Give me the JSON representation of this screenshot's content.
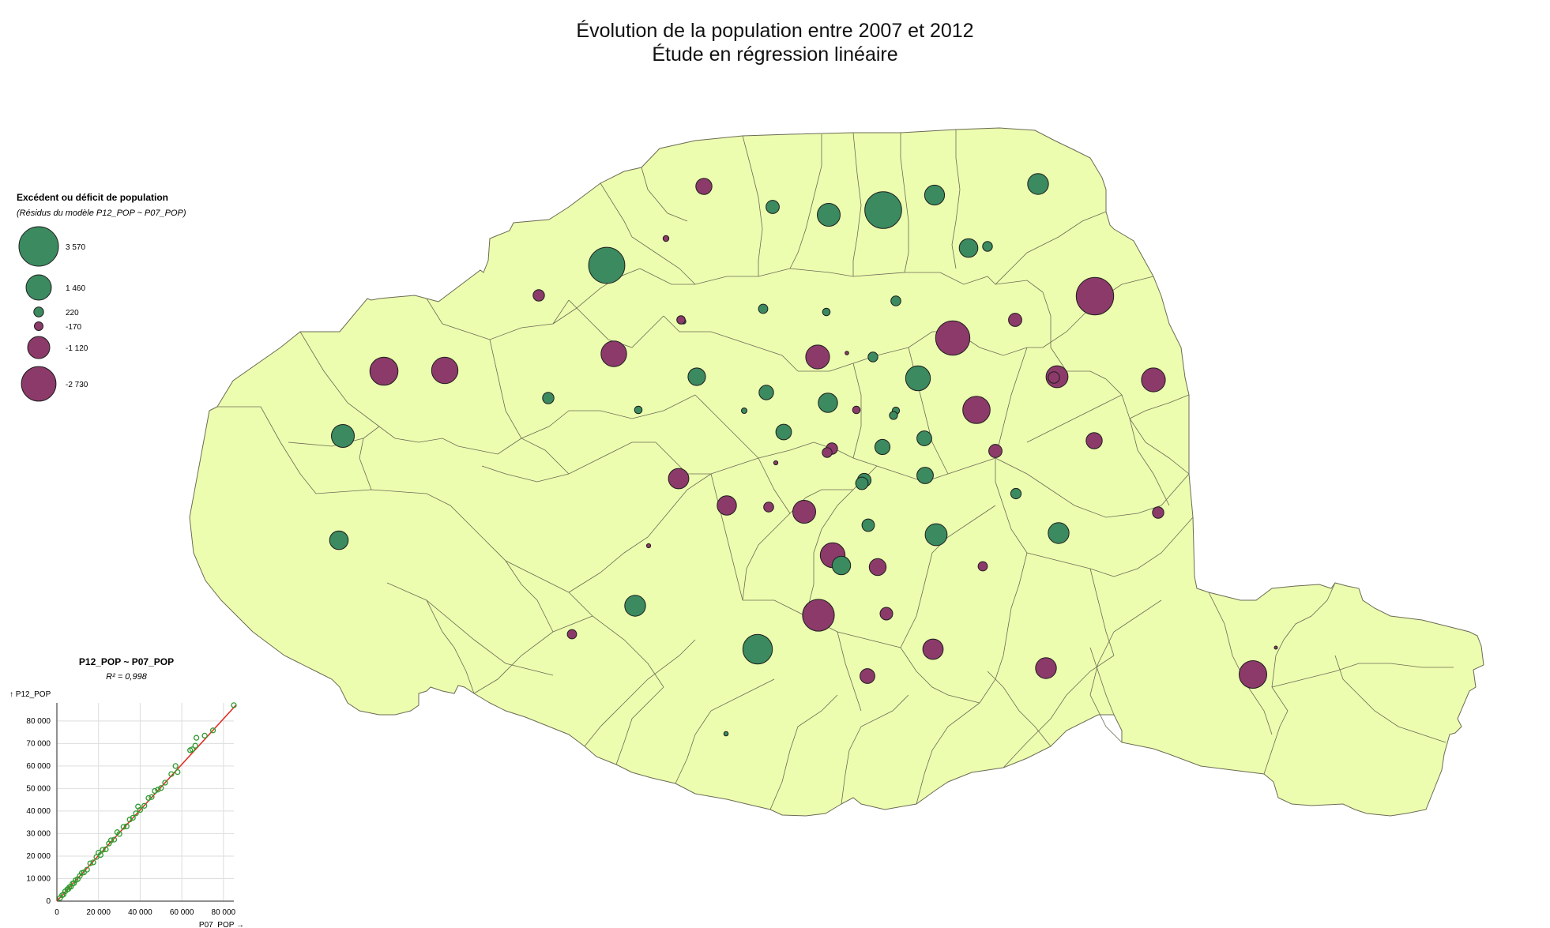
{
  "title": {
    "line1": "Évolution de la population entre 2007 et 2012",
    "line2": "Étude en régression linéaire"
  },
  "colors": {
    "land_fill": "#ecfdaf",
    "border": "#6b6b55",
    "surplus": "#3b8a60",
    "deficit": "#8c3a6a",
    "regression_line": "#e0281e",
    "scatter_point": "#2f9a2f"
  },
  "legend": {
    "title": "Excédent ou déficit de population",
    "subtitle": "(Résidus du modèle P12_POP ~ P07_POP)",
    "items": [
      {
        "value": 3570,
        "label": "3 570",
        "kind": "surplus"
      },
      {
        "value": 1460,
        "label": "1 460",
        "kind": "surplus"
      },
      {
        "value": 220,
        "label": "220",
        "kind": "surplus"
      },
      {
        "value": -170,
        "label": "-170",
        "kind": "deficit"
      },
      {
        "value": -1120,
        "label": "-1 120",
        "kind": "deficit"
      },
      {
        "value": -2730,
        "label": "-2 730",
        "kind": "deficit"
      }
    ]
  },
  "scatter": {
    "title": "P12_POP ~ P07_POP",
    "subtitle": "R² = 0,998",
    "y_label": "↑ P12_POP",
    "x_label": "P07_POP →",
    "x_ticks": [
      "0",
      "20 000",
      "40 000",
      "60 000",
      "80 000"
    ],
    "y_ticks": [
      "0",
      "10 000",
      "20 000",
      "30 000",
      "40 000",
      "50 000",
      "60 000",
      "70 000",
      "80 000"
    ]
  },
  "chart_data": {
    "type": "scatter",
    "title": "P12_POP ~ P07_POP",
    "subtitle": "R² = 0,998",
    "xlabel": "P07_POP",
    "ylabel": "P12_POP",
    "xlim": [
      0,
      85000
    ],
    "ylim": [
      0,
      88000
    ],
    "grid": true,
    "regression_line": {
      "from": [
        0,
        0
      ],
      "to": [
        86000,
        87000
      ]
    },
    "points": [
      [
        1500,
        1400
      ],
      [
        2500,
        2600
      ],
      [
        3200,
        3000
      ],
      [
        4000,
        4300
      ],
      [
        5000,
        5200
      ],
      [
        5500,
        5400
      ],
      [
        6000,
        6200
      ],
      [
        6800,
        6500
      ],
      [
        7500,
        7800
      ],
      [
        8200,
        8000
      ],
      [
        9000,
        9300
      ],
      [
        10000,
        9800
      ],
      [
        11000,
        11200
      ],
      [
        12000,
        12500
      ],
      [
        13000,
        12800
      ],
      [
        14500,
        14000
      ],
      [
        16000,
        16800
      ],
      [
        17500,
        17200
      ],
      [
        19000,
        19600
      ],
      [
        20000,
        21500
      ],
      [
        21000,
        20500
      ],
      [
        22000,
        22800
      ],
      [
        23500,
        23000
      ],
      [
        25000,
        25600
      ],
      [
        26000,
        27000
      ],
      [
        27500,
        27300
      ],
      [
        29000,
        30600
      ],
      [
        30000,
        29800
      ],
      [
        32000,
        33000
      ],
      [
        33500,
        33200
      ],
      [
        35000,
        36200
      ],
      [
        36500,
        37000
      ],
      [
        38000,
        39000
      ],
      [
        39000,
        42000
      ],
      [
        40000,
        40500
      ],
      [
        42000,
        42300
      ],
      [
        44000,
        45800
      ],
      [
        45500,
        46200
      ],
      [
        47000,
        48900
      ],
      [
        48500,
        49500
      ],
      [
        50000,
        50200
      ],
      [
        52000,
        52600
      ],
      [
        55000,
        56400
      ],
      [
        57000,
        60000
      ],
      [
        58000,
        57300
      ],
      [
        64000,
        67000
      ],
      [
        65000,
        67400
      ],
      [
        66500,
        69000
      ],
      [
        67000,
        72500
      ],
      [
        71000,
        73500
      ],
      [
        75000,
        75800
      ],
      [
        85000,
        87000
      ]
    ]
  },
  "map": {
    "circles": [
      {
        "v": 1000
      },
      {
        "v": -600
      },
      {
        "v": 400
      },
      {
        "v": 1200
      },
      {
        "v": 3100
      },
      {
        "v": 900
      },
      {
        "v": 800
      },
      {
        "v": -80
      },
      {
        "v": 3000
      },
      {
        "v": 220
      },
      {
        "v": -300
      },
      {
        "v": -3200
      },
      {
        "v": -400
      },
      {
        "v": 230
      },
      {
        "v": 200
      },
      {
        "v": 60
      },
      {
        "v": -2700
      },
      {
        "v": -1500
      },
      {
        "v": -30
      },
      {
        "v": -1300
      },
      {
        "v": 130
      },
      {
        "v": -160
      },
      {
        "v": 220
      },
      {
        "v": 1400
      },
      {
        "v": -1600
      },
      {
        "v": 300
      },
      {
        "v": 130
      },
      {
        "v": -1100
      },
      {
        "v": 700
      },
      {
        "v": 480
      },
      {
        "v": 850
      },
      {
        "v": 70
      },
      {
        "v": -130
      },
      {
        "v": -1700
      },
      {
        "v": -300
      },
      {
        "v": 120
      },
      {
        "v": 500
      },
      {
        "v": 150
      },
      {
        "v": 560
      },
      {
        "v": -300
      },
      {
        "v": -1300
      },
      {
        "v": 530
      },
      {
        "v": -40
      },
      {
        "v": 620
      },
      {
        "v": -950
      },
      {
        "v": -250
      },
      {
        "v": -850
      },
      {
        "v": 420
      },
      {
        "v": -1200
      },
      {
        "v": -230
      },
      {
        "v": 250
      },
      {
        "v": -600
      },
      {
        "v": 360
      },
      {
        "v": 1000
      },
      {
        "v": -220
      },
      {
        "v": -400
      },
      {
        "v": -40
      },
      {
        "v": 1100
      },
      {
        "v": -300
      },
      {
        "v": -1400
      },
      {
        "v": 360
      },
      {
        "v": -650
      },
      {
        "v": -2300
      },
      {
        "v": 1000
      },
      {
        "v": -200
      },
      {
        "v": -950
      },
      {
        "v": -370
      },
      {
        "v": -1000
      },
      {
        "v": 1200
      },
      {
        "v": -1800
      },
      {
        "v": 800
      },
      {
        "v": -10
      },
      {
        "v": 2000
      },
      {
        "v": -500
      },
      {
        "v": -1750
      },
      {
        "v": -200
      },
      {
        "v": 780
      },
      {
        "v": 45
      }
    ]
  }
}
